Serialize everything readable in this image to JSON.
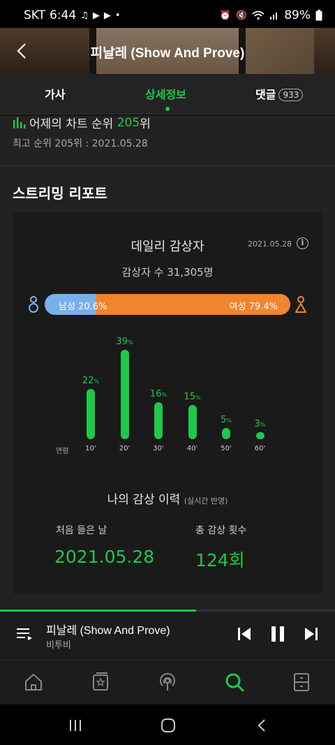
{
  "status_bar": {
    "carrier": "SKT",
    "time": "6:44",
    "battery": "89%"
  },
  "header": {
    "title": "피날레 (Show And Prove)"
  },
  "tabs": [
    {
      "label": "가사",
      "active": false
    },
    {
      "label": "상세정보",
      "active": true
    },
    {
      "label": "댓글",
      "badge": "933",
      "active": false
    }
  ],
  "chart_rank": {
    "prefix": "어제의 차트 순위",
    "rank": "205",
    "suffix": "위"
  },
  "best_rank": "최고 순위 205위 : 2021.05.28",
  "streaming": {
    "section_title": "스트리밍 리포트",
    "card_title": "데일리 감상자",
    "date": "2021.05.28",
    "listener_count": "감상자 수 31,305명",
    "gender": {
      "male_label": "남성 20.6%",
      "female_label": "여성 79.4%",
      "male_fraction": 0.206,
      "female_fraction": 0.794
    },
    "age_axis_title": "연령"
  },
  "chart_data": {
    "type": "bar",
    "categories": [
      "10'",
      "20'",
      "30'",
      "40'",
      "50'",
      "60'"
    ],
    "values": [
      22,
      39,
      16,
      15,
      5,
      3
    ],
    "unit": "%",
    "xlabel": "연령",
    "ylabel": "",
    "ylim": [
      0,
      39
    ],
    "color": "#1ec84a"
  },
  "history": {
    "title": "나의 감상 이력",
    "note": "(실시간 반영)",
    "first_label": "처음 들은 날",
    "first_value": "2021.05.28",
    "count_label": "총 감상 횟수",
    "count_value": "124회"
  },
  "player": {
    "song_title": "피날레 (Show And Prove)",
    "artist": "비투비",
    "progress": 0.585
  },
  "colors": {
    "accent": "#1ec84a",
    "male": "#7ab0ea",
    "female": "#f0852f",
    "background": "#222222"
  }
}
